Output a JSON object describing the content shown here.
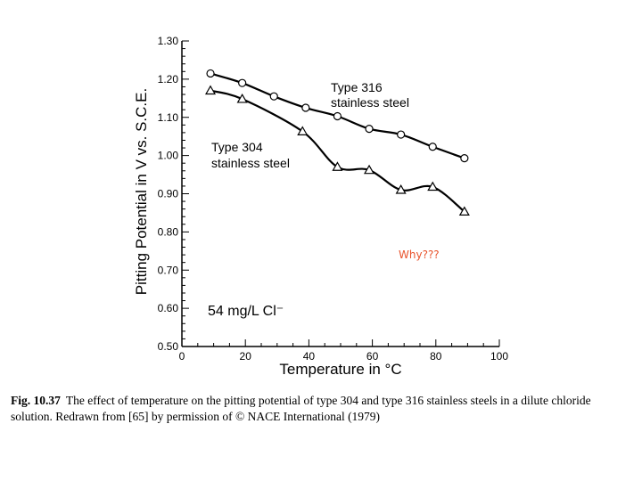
{
  "chart_data": {
    "type": "line",
    "xlabel": "Temperature in °C",
    "ylabel": "Pitting Potential in V vs. S.C.E.",
    "xlim": [
      0,
      100
    ],
    "ylim": [
      0.5,
      1.3
    ],
    "x_ticks": [
      "0",
      "20",
      "40",
      "60",
      "80",
      "100"
    ],
    "y_ticks": [
      "0.50",
      "0.60",
      "0.70",
      "0.80",
      "0.90",
      "1.00",
      "1.10",
      "1.20",
      "1.30"
    ],
    "grid": false,
    "series": [
      {
        "name": "Type 316 stainless steel",
        "label_line1": "Type 316",
        "label_line2": "stainless steel",
        "marker": "circle",
        "x": [
          9,
          19,
          29,
          39,
          49,
          59,
          69,
          79,
          89
        ],
        "y": [
          1.215,
          1.19,
          1.155,
          1.125,
          1.103,
          1.07,
          1.055,
          1.023,
          0.993
        ]
      },
      {
        "name": "Type 304 stainless steel",
        "label_line1": "Type 304",
        "label_line2": "stainless steel",
        "marker": "triangle",
        "x": [
          9,
          19,
          38,
          49,
          59,
          69,
          79,
          89
        ],
        "y": [
          1.17,
          1.148,
          1.063,
          0.97,
          0.962,
          0.91,
          0.918,
          0.853
        ]
      }
    ],
    "annotations": {
      "condition": "54 mg/L Cl⁻",
      "question": "Why???"
    }
  },
  "colors": {
    "question_text": "#e8532c",
    "line": "#000000"
  },
  "caption": {
    "fig_label": "Fig. 10.37",
    "text": "The effect of temperature on the pitting potential of type 304 and type 316 stainless steels in a dilute chloride solution. Redrawn from [65] by permission of © NACE International (1979)"
  }
}
